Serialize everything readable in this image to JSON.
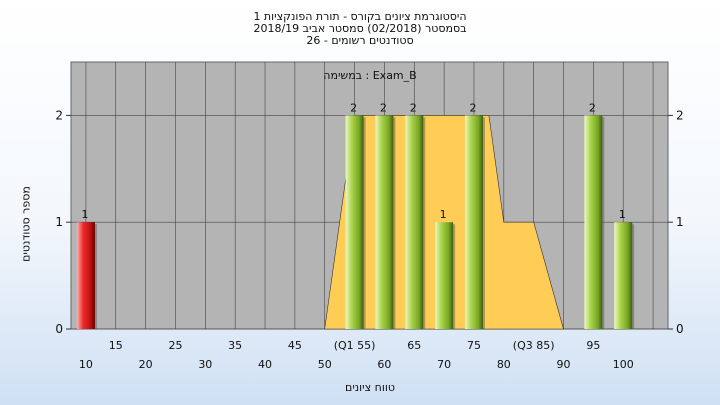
{
  "chart_data": {
    "type": "bar",
    "title": "היסטוגרמת ציונים בקורס - תורת הפונקציות 1",
    "subtitle": "בסמסטר  (02/2018)  סמסטר אביב 2018/19",
    "subtitle2": "סטודנטים רשומים - 26",
    "legend_label": "Exam_B : במשימה",
    "xlabel": "טווח ציונים",
    "ylabel": "מספר סטודנטים",
    "ylim": [
      0,
      2.5
    ],
    "y_ticks": [
      "0",
      "1",
      "2"
    ],
    "x_ticks_upper": [
      "15",
      "25",
      "35",
      "45",
      "(Q1 55)",
      "65",
      "75",
      "(Q3 85)",
      "95"
    ],
    "x_ticks_lower": [
      "10",
      "20",
      "30",
      "40",
      "50",
      "60",
      "70",
      "80",
      "90",
      "100"
    ],
    "bins": [
      {
        "grade": 10,
        "count": 1,
        "color": "red"
      },
      {
        "grade": 55,
        "count": 2,
        "color": "green"
      },
      {
        "grade": 60,
        "count": 2,
        "color": "green"
      },
      {
        "grade": 65,
        "count": 2,
        "color": "green"
      },
      {
        "grade": 70,
        "count": 1,
        "color": "green"
      },
      {
        "grade": 75,
        "count": 2,
        "color": "green"
      },
      {
        "grade": 95,
        "count": 2,
        "color": "green"
      },
      {
        "grade": 100,
        "count": 1,
        "color": "green"
      }
    ],
    "box": {
      "q1": 55,
      "q3": 85,
      "min": 50,
      "max": 90
    },
    "grid": true,
    "colors": {
      "plot_bg": "#b4b4b4",
      "quartile_band": "#ffcc55",
      "bar_green": "#9acd32",
      "bar_red": "#e02020"
    }
  }
}
